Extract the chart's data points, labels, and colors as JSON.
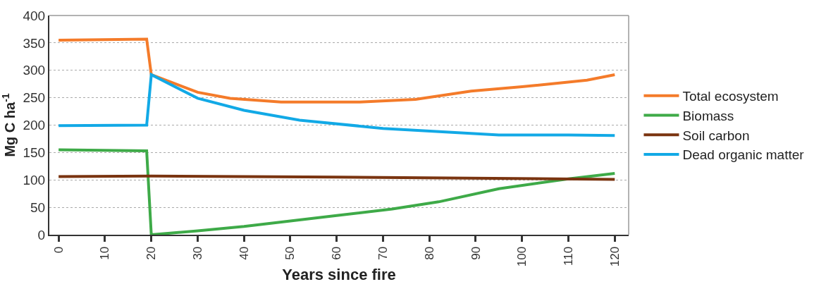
{
  "chart_data": {
    "type": "line",
    "xlabel": "Years since fire",
    "ylabel": "Mg C ha$^{-1}$",
    "xlim": [
      -2,
      123
    ],
    "ylim": [
      0,
      400
    ],
    "xticks": [
      0,
      10,
      20,
      30,
      40,
      50,
      60,
      70,
      80,
      90,
      100,
      110,
      120
    ],
    "yticks": [
      0,
      50,
      100,
      150,
      200,
      250,
      300,
      350,
      400
    ],
    "grid": "y",
    "legend": "right",
    "marker": "none",
    "line_style": "solid",
    "series": [
      {
        "name": "Total ecosystem",
        "color": "#f47b2a",
        "x": [
          0,
          19,
          20,
          30,
          37,
          48,
          65,
          77,
          89,
          100,
          114,
          120
        ],
        "values": [
          355,
          357,
          292,
          260,
          249,
          242,
          242,
          247,
          262,
          270,
          282,
          292
        ]
      },
      {
        "name": "Biomass",
        "color": "#3eaa48",
        "x": [
          0,
          19,
          20,
          30,
          40,
          50,
          60,
          72,
          82,
          95,
          110,
          120
        ],
        "values": [
          155,
          153,
          0,
          7,
          15,
          25,
          35,
          47,
          60,
          84,
          102,
          112
        ]
      },
      {
        "name": "Soil carbon",
        "color": "#7a3410",
        "x": [
          0,
          20,
          60,
          120
        ],
        "values": [
          106,
          107,
          105,
          101
        ]
      },
      {
        "name": "Dead organic matter",
        "color": "#12a9e6",
        "x": [
          0,
          19,
          20,
          30,
          40,
          52,
          70,
          95,
          110,
          120
        ],
        "values": [
          199,
          200,
          292,
          249,
          227,
          209,
          194,
          182,
          182,
          181
        ]
      }
    ]
  }
}
